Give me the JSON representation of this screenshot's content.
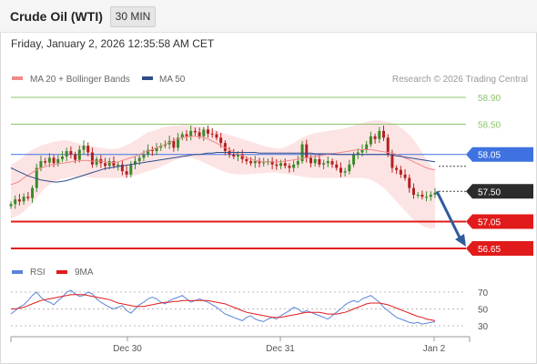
{
  "header": {
    "instrument": "Crude Oil (WTI)",
    "timeframe": "30 MIN"
  },
  "timestamp": "Friday, January 2, 2026 12:35:58 AM CET",
  "credit": "Research © 2026 Trading Central",
  "colors": {
    "resistance": "#8cc56a",
    "pivot": "#3f72e0",
    "support": "#e11b1b",
    "last": "#2b2b2b",
    "arrow": "#2f5c9c",
    "bb_fill": "#fde1e1",
    "ma20": "#f08a8a",
    "ma50": "#2e4d8c",
    "bull": "#3a8a2a",
    "bear": "#b3201f",
    "rsi": "#5b84d9",
    "rsi_ma": "#e11b1b"
  },
  "chart_data": [
    {
      "type": "line",
      "title": "Crude Oil (WTI)",
      "legend": [
        {
          "name": "MA 20 + Bollinger Bands",
          "color": "#f08a8a"
        },
        {
          "name": "MA 50",
          "color": "#2e4d8c"
        }
      ],
      "ylim": [
        56.55,
        59.0
      ],
      "x_ticks": [
        "Dec 30",
        "Dec 31",
        "Jan 2"
      ],
      "levels": [
        {
          "label": "58.90",
          "value": 58.9,
          "kind": "resistance"
        },
        {
          "label": "58.50",
          "value": 58.5,
          "kind": "resistance"
        },
        {
          "label": "58.05",
          "value": 58.05,
          "kind": "pivot"
        },
        {
          "label": "57.50",
          "value": 57.5,
          "kind": "last"
        },
        {
          "label": "57.05",
          "value": 57.05,
          "kind": "support"
        },
        {
          "label": "56.65",
          "value": 56.65,
          "kind": "support"
        }
      ],
      "close": [
        57.31,
        57.38,
        57.35,
        57.42,
        57.4,
        57.55,
        57.85,
        57.95,
        57.93,
        58.0,
        57.92,
        57.98,
        58.02,
        58.1,
        58.05,
        57.97,
        58.12,
        58.18,
        58.08,
        57.9,
        57.98,
        57.92,
        57.88,
        57.95,
        57.88,
        57.9,
        57.8,
        57.75,
        57.9,
        57.95,
        58.0,
        58.05,
        58.12,
        58.1,
        58.15,
        58.18,
        58.2,
        58.25,
        58.15,
        58.3,
        58.35,
        58.32,
        58.4,
        58.38,
        58.32,
        58.42,
        58.36,
        58.35,
        58.3,
        58.22,
        58.1,
        58.05,
        58.02,
        58.05,
        57.98,
        57.95,
        57.92,
        57.95,
        57.92,
        57.93,
        57.95,
        57.9,
        57.88,
        57.92,
        57.88,
        57.85,
        57.9,
        57.95,
        58.2,
        58.0,
        57.92,
        57.98,
        57.9,
        57.92,
        57.95,
        57.9,
        57.85,
        57.78,
        57.8,
        57.9,
        58.05,
        58.08,
        58.12,
        58.2,
        58.32,
        58.28,
        58.4,
        58.3,
        58.05,
        57.85,
        57.82,
        57.75,
        57.7,
        57.55,
        57.45,
        57.45,
        57.42,
        57.42,
        57.45,
        57.48
      ],
      "ma20": [
        57.6,
        57.62,
        57.65,
        57.7,
        57.74,
        57.78,
        57.82,
        57.85,
        57.87,
        57.89,
        57.9,
        57.91,
        57.92,
        57.93,
        57.94,
        57.95,
        57.96,
        57.96,
        57.96,
        57.95,
        57.95,
        57.95,
        57.94,
        57.93,
        57.93,
        57.94,
        57.96,
        57.98,
        58.0,
        58.02,
        58.05,
        58.08,
        58.1,
        58.12,
        58.15,
        58.17,
        58.2,
        58.23,
        58.26,
        58.28,
        58.3,
        58.31,
        58.32,
        58.32,
        58.31,
        58.3,
        58.28,
        58.25,
        58.22,
        58.18,
        58.15,
        58.12,
        58.09,
        58.06,
        58.03,
        58.0,
        57.98,
        57.96,
        57.95,
        57.94,
        57.94,
        57.94,
        57.94,
        57.94,
        57.95,
        57.96,
        57.97,
        57.98,
        57.99,
        58.0,
        58.01,
        58.02,
        58.03,
        58.04,
        58.05,
        58.06,
        58.07,
        58.08,
        58.09,
        58.1,
        58.11,
        58.12,
        58.12,
        58.12,
        58.12,
        58.11,
        58.1,
        58.09,
        58.08,
        58.07,
        58.05,
        58.03,
        58.0,
        57.97,
        57.94,
        57.91,
        57.88,
        57.85,
        57.83,
        57.82
      ],
      "bb_upper": [
        57.9,
        57.93,
        57.97,
        58.02,
        58.08,
        58.12,
        58.15,
        58.18,
        58.2,
        58.22,
        58.24,
        58.25,
        58.26,
        58.26,
        58.25,
        58.23,
        58.21,
        58.19,
        58.18,
        58.17,
        58.16,
        58.15,
        58.14,
        58.13,
        58.13,
        58.14,
        58.16,
        58.19,
        58.22,
        58.26,
        58.3,
        58.34,
        58.38,
        58.4,
        58.42,
        58.44,
        58.46,
        58.47,
        58.48,
        58.48,
        58.49,
        58.49,
        58.49,
        58.48,
        58.47,
        58.46,
        58.44,
        58.42,
        58.4,
        58.38,
        58.36,
        58.34,
        58.32,
        58.3,
        58.28,
        58.26,
        58.24,
        58.22,
        58.2,
        58.18,
        58.16,
        58.15,
        58.14,
        58.14,
        58.16,
        58.19,
        58.22,
        58.26,
        58.3,
        58.33,
        58.35,
        58.37,
        58.38,
        58.39,
        58.4,
        58.41,
        58.42,
        58.43,
        58.44,
        58.46,
        58.48,
        58.5,
        58.52,
        58.54,
        58.55,
        58.56,
        58.56,
        58.55,
        58.54,
        58.52,
        58.49,
        58.45,
        58.4,
        58.34,
        58.27,
        58.18,
        58.08,
        57.98,
        57.88,
        57.8
      ],
      "bb_lower": [
        57.1,
        57.12,
        57.15,
        57.2,
        57.26,
        57.32,
        57.4,
        57.48,
        57.55,
        57.6,
        57.64,
        57.67,
        57.69,
        57.7,
        57.71,
        57.72,
        57.72,
        57.72,
        57.71,
        57.7,
        57.7,
        57.7,
        57.7,
        57.7,
        57.7,
        57.7,
        57.7,
        57.71,
        57.72,
        57.74,
        57.76,
        57.78,
        57.8,
        57.82,
        57.84,
        57.87,
        57.9,
        57.93,
        57.96,
        57.98,
        58.0,
        58.0,
        58.0,
        57.98,
        57.96,
        57.93,
        57.9,
        57.87,
        57.84,
        57.81,
        57.79,
        57.77,
        57.76,
        57.75,
        57.75,
        57.75,
        57.76,
        57.76,
        57.77,
        57.77,
        57.78,
        57.78,
        57.78,
        57.77,
        57.76,
        57.75,
        57.74,
        57.73,
        57.72,
        57.71,
        57.7,
        57.7,
        57.7,
        57.7,
        57.7,
        57.7,
        57.7,
        57.7,
        57.7,
        57.7,
        57.7,
        57.7,
        57.7,
        57.69,
        57.67,
        57.64,
        57.6,
        57.55,
        57.49,
        57.42,
        57.35,
        57.28,
        57.21,
        57.14,
        57.08,
        57.03,
        56.99,
        56.96,
        56.95,
        56.95
      ],
      "ma50": [
        57.85,
        57.82,
        57.79,
        57.76,
        57.73,
        57.71,
        57.69,
        57.67,
        57.66,
        57.65,
        57.64,
        57.64,
        57.65,
        57.66,
        57.68,
        57.7,
        57.72,
        57.74,
        57.76,
        57.78,
        57.8,
        57.82,
        57.84,
        57.85,
        57.86,
        57.87,
        57.88,
        57.89,
        57.9,
        57.91,
        57.92,
        57.93,
        57.94,
        57.95,
        57.96,
        57.97,
        57.98,
        57.99,
        58.0,
        58.01,
        58.02,
        58.03,
        58.04,
        58.05,
        58.05,
        58.06,
        58.07,
        58.07,
        58.08,
        58.08,
        58.08,
        58.08,
        58.08,
        58.08,
        58.08,
        58.08,
        58.08,
        58.08,
        58.07,
        58.07,
        58.07,
        58.07,
        58.07,
        58.07,
        58.07,
        58.07,
        58.07,
        58.07,
        58.07,
        58.07,
        58.07,
        58.06,
        58.06,
        58.06,
        58.06,
        58.06,
        58.05,
        58.05,
        58.05,
        58.05,
        58.05,
        58.05,
        58.05,
        58.05,
        58.05,
        58.05,
        58.05,
        58.05,
        58.05,
        58.04,
        58.03,
        58.02,
        58.01,
        58.0,
        57.99,
        57.98,
        57.97,
        57.96,
        57.95,
        57.94
      ]
    },
    {
      "type": "line",
      "legend": [
        {
          "name": "RSI",
          "color": "#5b84d9"
        },
        {
          "name": "9MA",
          "color": "#e11b1b"
        }
      ],
      "ylim": [
        20,
        80
      ],
      "y_ticks": [
        70,
        50,
        30
      ],
      "rsi": [
        44,
        48,
        52,
        55,
        60,
        66,
        70,
        64,
        60,
        58,
        55,
        60,
        64,
        70,
        72,
        68,
        65,
        66,
        70,
        68,
        62,
        58,
        55,
        52,
        50,
        52,
        54,
        48,
        45,
        50,
        55,
        58,
        62,
        64,
        62,
        58,
        56,
        60,
        62,
        64,
        66,
        62,
        58,
        60,
        62,
        60,
        58,
        55,
        52,
        48,
        44,
        42,
        40,
        38,
        36,
        40,
        42,
        38,
        36,
        35,
        38,
        40,
        38,
        42,
        45,
        48,
        52,
        50,
        46,
        48,
        46,
        44,
        42,
        40,
        38,
        42,
        46,
        50,
        55,
        58,
        60,
        58,
        62,
        64,
        66,
        62,
        58,
        52,
        48,
        44,
        40,
        38,
        36,
        34,
        33,
        34,
        32,
        33,
        34,
        35
      ],
      "ma9": [
        50,
        50,
        51,
        52,
        54,
        56,
        58,
        60,
        61,
        62,
        63,
        64,
        65,
        66,
        67,
        67,
        67,
        67,
        66,
        65,
        64,
        63,
        62,
        61,
        59,
        57,
        56,
        55,
        54,
        53,
        53,
        53,
        54,
        55,
        56,
        57,
        58,
        58,
        59,
        59,
        60,
        60,
        60,
        60,
        60,
        60,
        60,
        59,
        58,
        57,
        56,
        54,
        52,
        50,
        48,
        46,
        45,
        44,
        43,
        42,
        41,
        40,
        40,
        40,
        41,
        42,
        43,
        44,
        45,
        46,
        46,
        46,
        46,
        45,
        44,
        44,
        44,
        45,
        46,
        48,
        50,
        52,
        54,
        56,
        57,
        57,
        57,
        56,
        55,
        53,
        51,
        49,
        47,
        45,
        43,
        41,
        40,
        38,
        37,
        36
      ]
    }
  ]
}
